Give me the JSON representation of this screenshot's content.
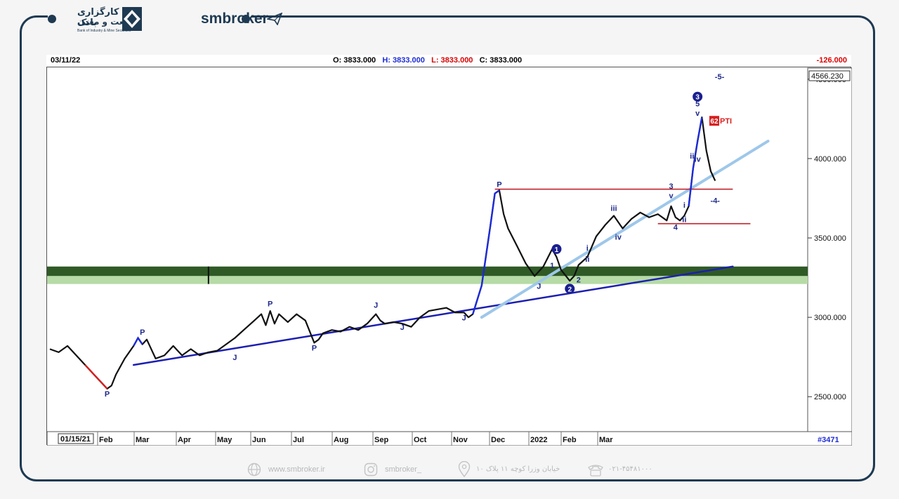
{
  "brand": {
    "bank_name_fa": "کارگزاری بانک",
    "bank_name_fa2": "صنعت و معدن",
    "bank_name_en": "Bank of Industry & Mine Securities",
    "site_name": "smbroker"
  },
  "header": {
    "date": "03/11/22",
    "o_label": "O:",
    "o_value": "3833.000",
    "h_label": "H:",
    "h_value": "3833.000",
    "l_label": "L:",
    "l_value": "3833.000",
    "c_label": "C:",
    "c_value": "3833.000",
    "change": "-126.000",
    "colors": {
      "h": "#1d2bd6",
      "l": "#d90000",
      "text": "#000000"
    }
  },
  "footer": {
    "website": "www.smbroker.ir",
    "instagram": "smbroker_",
    "address": "خیابان وزرا کوچه ۱۱ پلاک ۱۰",
    "phone": "۰۲۱-۴۵۴۸۱۰۰۰"
  },
  "chart_data": {
    "type": "line",
    "y_axis": {
      "ticks": [
        2500,
        3000,
        3500,
        4000,
        4500
      ],
      "tick_labels": [
        "2500.000",
        "3000.000",
        "3500.000",
        "4000.000",
        "4500.000"
      ],
      "ylim": [
        2280,
        4570
      ],
      "top_value_label": "4566.230"
    },
    "x_axis": {
      "first_label": "01/15/21",
      "labels": [
        "Feb",
        "Mar",
        "Apr",
        "May",
        "Jun",
        "Jul",
        "Aug",
        "Sep",
        "Oct",
        "Nov",
        "Dec",
        "2022",
        "Feb",
        "Mar"
      ],
      "bar_count_label": "#3471"
    },
    "price_series": [
      {
        "t": 0,
        "v": 2800
      },
      {
        "t": 2,
        "v": 2780
      },
      {
        "t": 4,
        "v": 2820
      },
      {
        "t": 6,
        "v": 2760
      },
      {
        "t": 8,
        "v": 2700
      },
      {
        "t": 10,
        "v": 2640
      },
      {
        "t": 12,
        "v": 2580
      },
      {
        "t": 13,
        "v": 2550
      },
      {
        "t": 14,
        "v": 2570
      },
      {
        "t": 15,
        "v": 2640
      },
      {
        "t": 17,
        "v": 2740
      },
      {
        "t": 19,
        "v": 2820
      },
      {
        "t": 20,
        "v": 2870
      },
      {
        "t": 21,
        "v": 2830
      },
      {
        "t": 22,
        "v": 2860
      },
      {
        "t": 24,
        "v": 2740
      },
      {
        "t": 26,
        "v": 2760
      },
      {
        "t": 28,
        "v": 2820
      },
      {
        "t": 30,
        "v": 2760
      },
      {
        "t": 32,
        "v": 2800
      },
      {
        "t": 34,
        "v": 2760
      },
      {
        "t": 36,
        "v": 2780
      },
      {
        "t": 38,
        "v": 2790
      },
      {
        "t": 40,
        "v": 2830
      },
      {
        "t": 42,
        "v": 2870
      },
      {
        "t": 44,
        "v": 2920
      },
      {
        "t": 46,
        "v": 2970
      },
      {
        "t": 48,
        "v": 3020
      },
      {
        "t": 49,
        "v": 2950
      },
      {
        "t": 50,
        "v": 3040
      },
      {
        "t": 51,
        "v": 2960
      },
      {
        "t": 52,
        "v": 3020
      },
      {
        "t": 54,
        "v": 2970
      },
      {
        "t": 56,
        "v": 3020
      },
      {
        "t": 58,
        "v": 2980
      },
      {
        "t": 60,
        "v": 2840
      },
      {
        "t": 61,
        "v": 2860
      },
      {
        "t": 62,
        "v": 2900
      },
      {
        "t": 64,
        "v": 2920
      },
      {
        "t": 66,
        "v": 2910
      },
      {
        "t": 68,
        "v": 2940
      },
      {
        "t": 70,
        "v": 2920
      },
      {
        "t": 72,
        "v": 2960
      },
      {
        "t": 74,
        "v": 3020
      },
      {
        "t": 75,
        "v": 2980
      },
      {
        "t": 76,
        "v": 2960
      },
      {
        "t": 78,
        "v": 2970
      },
      {
        "t": 80,
        "v": 2960
      },
      {
        "t": 82,
        "v": 2940
      },
      {
        "t": 84,
        "v": 3000
      },
      {
        "t": 86,
        "v": 3040
      },
      {
        "t": 88,
        "v": 3050
      },
      {
        "t": 90,
        "v": 3060
      },
      {
        "t": 92,
        "v": 3030
      },
      {
        "t": 94,
        "v": 3030
      },
      {
        "t": 95,
        "v": 3000
      },
      {
        "t": 96,
        "v": 3020
      },
      {
        "t": 98,
        "v": 3200
      },
      {
        "t": 100,
        "v": 3580
      },
      {
        "t": 101,
        "v": 3780
      },
      {
        "t": 102,
        "v": 3800
      },
      {
        "t": 103,
        "v": 3650
      },
      {
        "t": 104,
        "v": 3560
      },
      {
        "t": 106,
        "v": 3450
      },
      {
        "t": 108,
        "v": 3340
      },
      {
        "t": 110,
        "v": 3260
      },
      {
        "t": 112,
        "v": 3320
      },
      {
        "t": 114,
        "v": 3430
      },
      {
        "t": 115,
        "v": 3380
      },
      {
        "t": 116,
        "v": 3300
      },
      {
        "t": 118,
        "v": 3230
      },
      {
        "t": 119,
        "v": 3260
      },
      {
        "t": 120,
        "v": 3330
      },
      {
        "t": 122,
        "v": 3380
      },
      {
        "t": 124,
        "v": 3510
      },
      {
        "t": 126,
        "v": 3580
      },
      {
        "t": 128,
        "v": 3640
      },
      {
        "t": 130,
        "v": 3560
      },
      {
        "t": 132,
        "v": 3620
      },
      {
        "t": 134,
        "v": 3660
      },
      {
        "t": 136,
        "v": 3630
      },
      {
        "t": 138,
        "v": 3650
      },
      {
        "t": 140,
        "v": 3610
      },
      {
        "t": 141,
        "v": 3700
      },
      {
        "t": 142,
        "v": 3630
      },
      {
        "t": 143,
        "v": 3610
      },
      {
        "t": 144,
        "v": 3640
      },
      {
        "t": 145,
        "v": 3700
      },
      {
        "t": 146,
        "v": 3940
      },
      {
        "t": 147,
        "v": 4110
      },
      {
        "t": 148,
        "v": 4260
      },
      {
        "t": 149,
        "v": 4050
      },
      {
        "t": 150,
        "v": 3920
      },
      {
        "t": 151,
        "v": 3860
      }
    ],
    "horizontal_levels": [
      {
        "value": 3807,
        "color": "#c0222a"
      },
      {
        "value": 3590,
        "color": "#c0222a"
      }
    ],
    "support_zone": {
      "dark": [
        3260,
        3320
      ],
      "light": [
        3210,
        3260
      ],
      "dark_color": "#2f5a26",
      "light_color": "#b6dba6"
    },
    "trend_lines": [
      {
        "name": "lower-trend",
        "from": {
          "t": 19,
          "v": 2700
        },
        "to": {
          "t": 155,
          "v": 3320
        },
        "color": "#1c1fb0"
      },
      {
        "name": "upper-trend",
        "from": {
          "t": 98,
          "v": 3000
        },
        "to": {
          "t": 163,
          "v": 4110
        },
        "color": "#9ec7ea"
      }
    ],
    "wave_labels": [
      {
        "text": "P",
        "t": 13,
        "v": 2500,
        "color": "#1e2a8a"
      },
      {
        "text": "P",
        "t": 21,
        "v": 2890,
        "color": "#1e2a8a"
      },
      {
        "text": "J",
        "t": 42,
        "v": 2730,
        "color": "#1e2a8a"
      },
      {
        "text": "P",
        "t": 50,
        "v": 3070,
        "color": "#1e2a8a"
      },
      {
        "text": "P",
        "t": 60,
        "v": 2790,
        "color": "#1e2a8a"
      },
      {
        "text": "J",
        "t": 74,
        "v": 3060,
        "color": "#1e2a8a"
      },
      {
        "text": "J",
        "t": 80,
        "v": 2920,
        "color": "#1e2a8a"
      },
      {
        "text": "J",
        "t": 94,
        "v": 2980,
        "color": "#1e2a8a"
      },
      {
        "text": "P",
        "t": 102,
        "v": 3820,
        "color": "#1e2a8a"
      },
      {
        "text": "J",
        "t": 111,
        "v": 3180,
        "color": "#1e2a8a"
      },
      {
        "text": "1",
        "t": 114,
        "v": 3310,
        "color": "#1e2a8a"
      },
      {
        "text": "2",
        "t": 120,
        "v": 3220,
        "color": "#1e2a8a"
      },
      {
        "text": "i",
        "t": 122,
        "v": 3420,
        "color": "#1e2a8a"
      },
      {
        "text": "ii",
        "t": 122,
        "v": 3350,
        "color": "#1e2a8a"
      },
      {
        "text": "iii",
        "t": 128,
        "v": 3670,
        "color": "#1e2a8a"
      },
      {
        "text": "iv",
        "t": 129,
        "v": 3490,
        "color": "#1e2a8a"
      },
      {
        "text": "3",
        "t": 141,
        "v": 3810,
        "color": "#1e2a8a"
      },
      {
        "text": "v",
        "t": 141,
        "v": 3750,
        "color": "#1e2a8a"
      },
      {
        "text": "4",
        "t": 142,
        "v": 3550,
        "color": "#1e2a8a"
      },
      {
        "text": "i",
        "t": 144,
        "v": 3690,
        "color": "#1e2a8a"
      },
      {
        "text": "ii",
        "t": 144,
        "v": 3600,
        "color": "#1e2a8a"
      },
      {
        "text": "iii",
        "t": 146,
        "v": 4000,
        "color": "#1e2a8a"
      },
      {
        "text": "iv",
        "t": 147,
        "v": 3980,
        "color": "#1e2a8a"
      },
      {
        "text": "5",
        "t": 147,
        "v": 4330,
        "color": "#1e2a8a"
      },
      {
        "text": "v",
        "t": 147,
        "v": 4270,
        "color": "#1e2a8a"
      },
      {
        "text": "-5-",
        "t": 152,
        "v": 4500,
        "color": "#1e2a8a"
      },
      {
        "text": "-4-",
        "t": 151,
        "v": 3720,
        "color": "#1e2a8a"
      }
    ],
    "circle_labels": [
      {
        "text": "1",
        "t": 115,
        "v": 3430
      },
      {
        "text": "2",
        "t": 118,
        "v": 3180
      },
      {
        "text": "3",
        "t": 147,
        "v": 4390
      }
    ],
    "pti_label": {
      "number": "62",
      "text": "PTI",
      "t": 150,
      "v": 4220,
      "color": "#d92020"
    }
  }
}
